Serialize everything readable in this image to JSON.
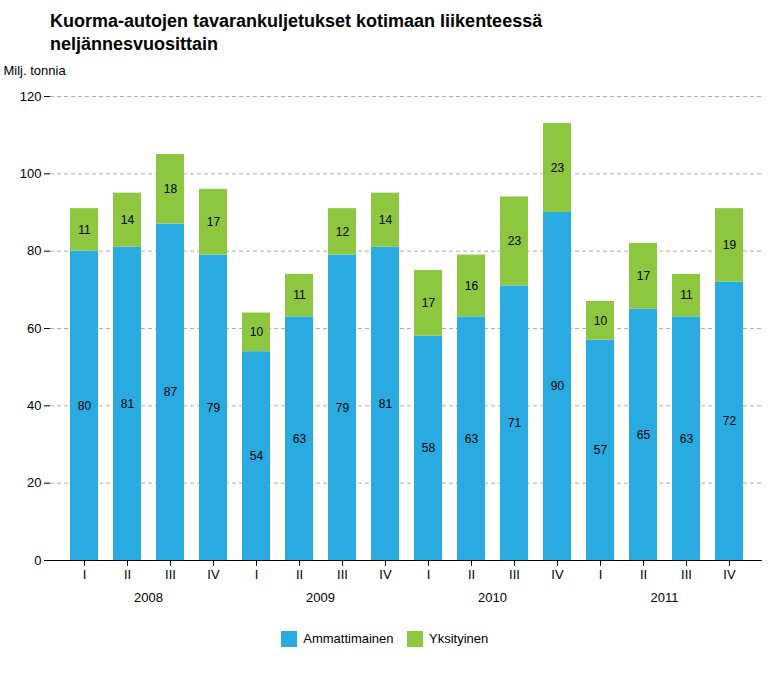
{
  "chart_data": {
    "type": "bar",
    "title": "Kuorma-autojen tavarankuljetukset kotimaan liikenteessä",
    "subtitle": "neljännesvuosittain",
    "ylabel": "Milj. tonnia",
    "categories": [
      "I",
      "II",
      "III",
      "IV",
      "I",
      "II",
      "III",
      "IV",
      "I",
      "II",
      "III",
      "IV",
      "I",
      "II",
      "III",
      "IV"
    ],
    "groups": [
      "2008",
      "2009",
      "2010",
      "2011"
    ],
    "series": [
      {
        "name": "Ammattimainen",
        "color": "#29ABE2",
        "values": [
          80,
          81,
          87,
          79,
          54,
          63,
          79,
          81,
          58,
          63,
          71,
          90,
          57,
          65,
          63,
          72
        ]
      },
      {
        "name": "Yksityinen",
        "color": "#8DC63F",
        "values": [
          11,
          14,
          18,
          17,
          10,
          11,
          12,
          14,
          17,
          16,
          23,
          23,
          10,
          17,
          11,
          19
        ]
      }
    ],
    "ylim": [
      0,
      120
    ],
    "yticks": [
      0,
      20,
      40,
      60,
      80,
      100,
      120
    ],
    "stacked": true,
    "data_labels": true,
    "grid": true,
    "legend": "bottom"
  }
}
